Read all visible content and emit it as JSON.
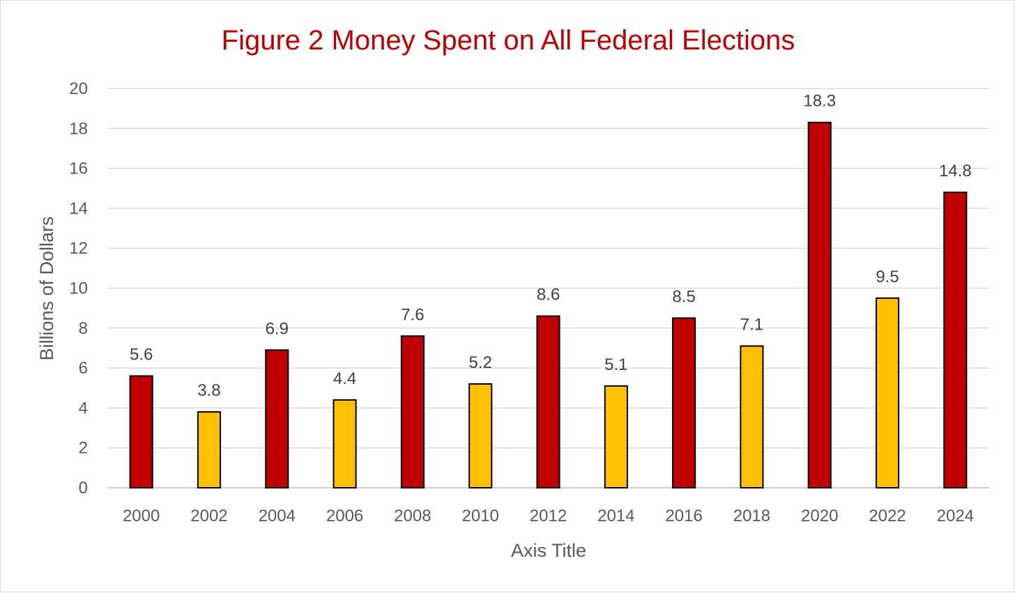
{
  "chart_data": {
    "type": "bar",
    "title": "Figure 2 Money Spent on All Federal Elections",
    "xlabel": "Axis Title",
    "ylabel": "Billions of Dollars",
    "ylim": [
      0,
      20
    ],
    "yticks": [
      0,
      2,
      4,
      6,
      8,
      10,
      12,
      14,
      16,
      18,
      20
    ],
    "grid": true,
    "categories": [
      "2000",
      "2002",
      "2004",
      "2006",
      "2008",
      "2010",
      "2012",
      "2014",
      "2016",
      "2018",
      "2020",
      "2022",
      "2024"
    ],
    "values": [
      5.6,
      3.8,
      6.9,
      4.4,
      7.6,
      5.2,
      8.6,
      5.1,
      8.5,
      7.1,
      18.3,
      9.5,
      14.8
    ],
    "data_labels": [
      "5.6",
      "3.8",
      "6.9",
      "4.4",
      "7.6",
      "5.2",
      "8.6",
      "5.1",
      "8.5",
      "7.1",
      "18.3",
      "9.5",
      "14.8"
    ],
    "bar_colors": [
      "#c00000",
      "#ffc000",
      "#c00000",
      "#ffc000",
      "#c00000",
      "#ffc000",
      "#c00000",
      "#ffc000",
      "#c00000",
      "#ffc000",
      "#c00000",
      "#ffc000",
      "#c00000"
    ],
    "bar_outline_color": "#000000",
    "title_color": "#c00000",
    "text_color": "#595959",
    "grid_color": "#d9d9d9"
  }
}
